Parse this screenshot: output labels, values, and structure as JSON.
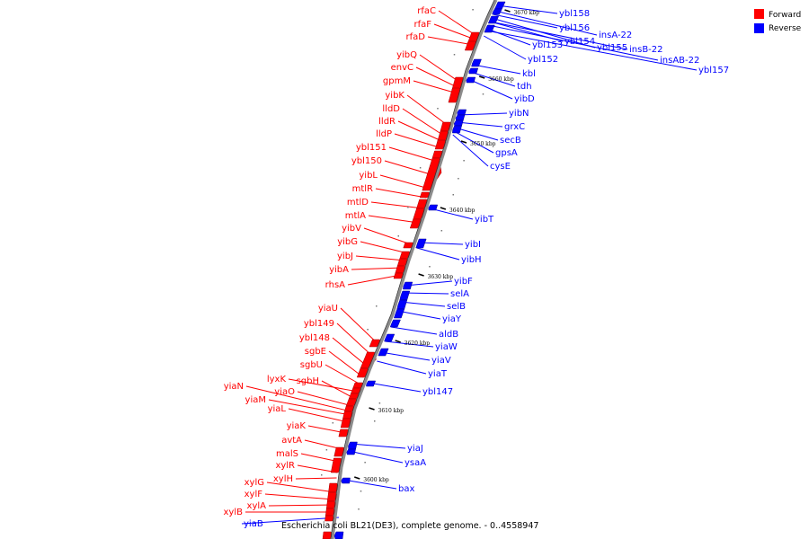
{
  "colors": {
    "forward": "#ff0000",
    "reverse": "#0000ff",
    "backbone": "#8c8c8c"
  },
  "legend": [
    {
      "label": "Forward",
      "color": "#ff0000"
    },
    {
      "label": "Reverse",
      "color": "#0000ff"
    }
  ],
  "caption": "Escherichia coli BL21(DE3), complete genome. - 0..4558947",
  "ticks": [
    {
      "label": "3670 kbp"
    },
    {
      "label": "3660 kbp"
    },
    {
      "label": "3650 kbp"
    },
    {
      "label": "3640 kbp"
    },
    {
      "label": "3630 kbp"
    },
    {
      "label": "3620 kbp"
    },
    {
      "label": "3610 kbp"
    },
    {
      "label": "3600 kbp"
    }
  ],
  "forward_genes": [
    "rfaC",
    "rfaF",
    "rfaD",
    "yibQ",
    "envC",
    "gpmM",
    "yibK",
    "lldD",
    "lldR",
    "lldP",
    "ybl151",
    "ybl150",
    "yibL",
    "mtlR",
    "mtlD",
    "mtlA",
    "yibV",
    "yibG",
    "yibJ",
    "yibA",
    "rhsA",
    "yiaU",
    "ybl149",
    "ybl148",
    "sgbE",
    "sgbU",
    "lyxK",
    "sgbH",
    "yiaO",
    "yiaN",
    "yiaM",
    "yiaL",
    "yiaK",
    "avtA",
    "malS",
    "xylR",
    "xylH",
    "xylG",
    "xylF",
    "xylA",
    "xylB"
  ],
  "reverse_genes": [
    "ybl158",
    "ybl156",
    "ybl154",
    "ybl153",
    "ybl152",
    "insA-22",
    "ybl155",
    "insB-22",
    "insAB-22",
    "ybl157",
    "kbl",
    "tdh",
    "yibD",
    "yibN",
    "grxC",
    "secB",
    "gpsA",
    "cysE",
    "yibT",
    "yibI",
    "yibH",
    "yibF",
    "selA",
    "selB",
    "yiaY",
    "aldB",
    "yiaW",
    "yiaV",
    "yiaT",
    "ybl147",
    "yiaJ",
    "ysaA",
    "bax",
    "yiaB"
  ]
}
